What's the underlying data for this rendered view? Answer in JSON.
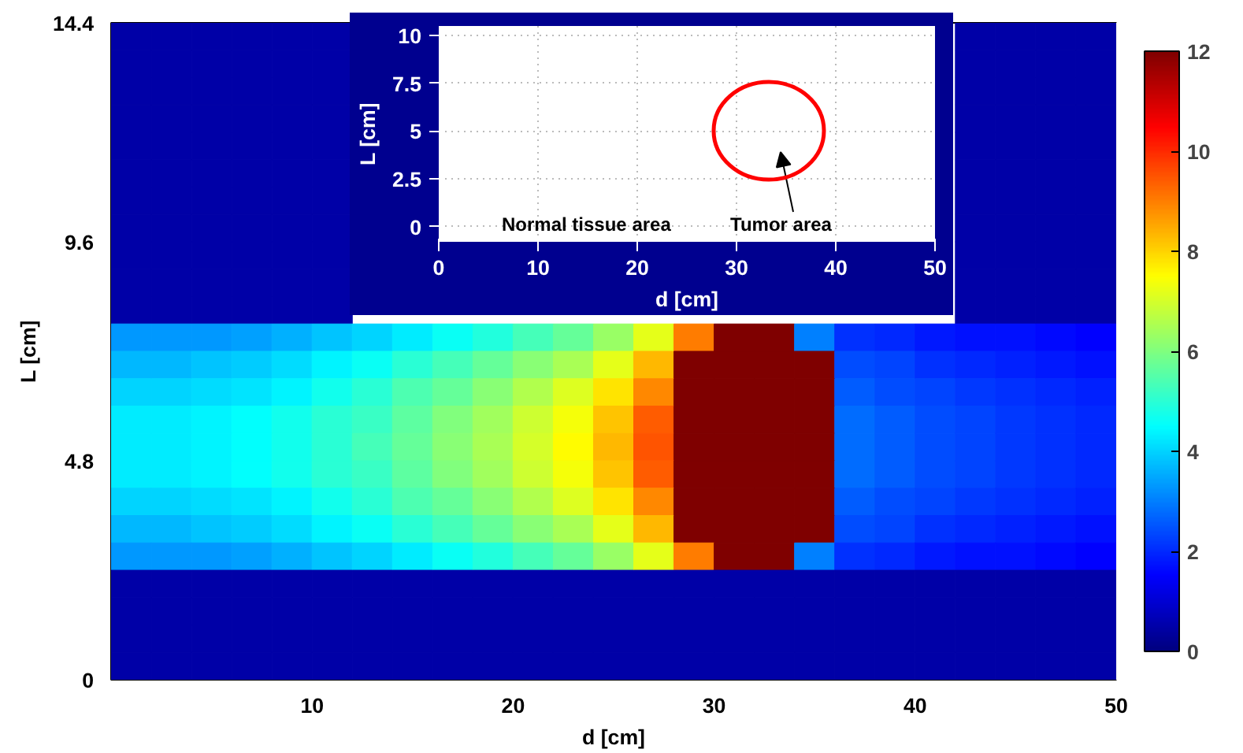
{
  "chart_data": [
    {
      "type": "heatmap",
      "xlabel": "d [cm]",
      "ylabel": "L [cm]",
      "xlim": [
        0,
        50
      ],
      "xticks": [
        10,
        20,
        30,
        40,
        50
      ],
      "ylim": [
        0,
        14.4
      ],
      "yticks": [
        0,
        4.8,
        9.6,
        14.4
      ],
      "clim": [
        0,
        12
      ],
      "cticks": [
        0,
        2,
        4,
        6,
        8,
        10,
        12
      ],
      "x": [
        1,
        3,
        5,
        7,
        9,
        11,
        13,
        15,
        17,
        19,
        21,
        23,
        25,
        27,
        29,
        31,
        33,
        35,
        37,
        39,
        41,
        43,
        45,
        47,
        49
      ],
      "y": [
        14.1,
        13.5,
        12.9,
        12.3,
        11.7,
        11.1,
        10.5,
        9.9,
        9.3,
        8.7,
        8.1,
        7.5,
        6.9,
        6.3,
        5.7,
        5.1,
        4.5,
        3.9,
        3.3,
        2.7,
        2.1,
        1.5,
        0.9,
        0.3
      ],
      "cells": [
        [
          0.5,
          0.5,
          0.5,
          0.5,
          0.5,
          0.5,
          null,
          null,
          null,
          null,
          null,
          null,
          null,
          null,
          null,
          null,
          null,
          null,
          null,
          null,
          null,
          0.5,
          0.5,
          0.5,
          0.5
        ],
        [
          0.5,
          0.5,
          0.5,
          0.5,
          0.5,
          0.5,
          null,
          null,
          null,
          null,
          null,
          null,
          null,
          null,
          null,
          null,
          null,
          null,
          null,
          null,
          null,
          0.5,
          0.5,
          0.5,
          0.5
        ],
        [
          0.5,
          0.5,
          0.5,
          0.5,
          0.5,
          0.5,
          null,
          null,
          null,
          null,
          null,
          null,
          null,
          null,
          null,
          null,
          null,
          null,
          null,
          null,
          null,
          0.5,
          0.5,
          0.5,
          0.5
        ],
        [
          0.5,
          0.5,
          0.5,
          0.5,
          0.5,
          0.5,
          null,
          null,
          null,
          null,
          null,
          null,
          null,
          null,
          null,
          null,
          null,
          null,
          null,
          null,
          null,
          0.5,
          0.5,
          0.5,
          0.5
        ],
        [
          0.5,
          0.5,
          0.5,
          0.5,
          0.5,
          0.5,
          null,
          null,
          null,
          null,
          null,
          null,
          null,
          null,
          null,
          null,
          null,
          null,
          null,
          null,
          null,
          0.5,
          0.5,
          0.5,
          0.5
        ],
        [
          0.5,
          0.5,
          0.5,
          0.5,
          0.5,
          0.5,
          null,
          null,
          null,
          null,
          null,
          null,
          null,
          null,
          null,
          null,
          null,
          null,
          null,
          null,
          null,
          0.5,
          0.5,
          0.5,
          0.5
        ],
        [
          0.5,
          0.5,
          0.5,
          0.5,
          0.5,
          0.5,
          null,
          null,
          null,
          null,
          null,
          null,
          null,
          null,
          null,
          null,
          null,
          null,
          null,
          null,
          null,
          0.5,
          0.5,
          0.5,
          0.5
        ],
        [
          0.5,
          0.5,
          0.5,
          0.5,
          0.5,
          0.5,
          null,
          null,
          null,
          null,
          null,
          null,
          null,
          null,
          null,
          null,
          null,
          null,
          null,
          null,
          null,
          0.5,
          0.5,
          0.5,
          0.5
        ],
        [
          0.5,
          0.5,
          0.5,
          0.5,
          0.5,
          0.5,
          null,
          null,
          null,
          null,
          null,
          null,
          null,
          null,
          null,
          null,
          null,
          null,
          null,
          null,
          null,
          0.5,
          0.5,
          0.5,
          0.5
        ],
        [
          0.5,
          0.5,
          0.5,
          0.5,
          0.5,
          0.5,
          null,
          null,
          null,
          null,
          null,
          null,
          null,
          null,
          null,
          null,
          null,
          null,
          null,
          null,
          null,
          0.5,
          0.5,
          0.5,
          0.5
        ],
        [
          0.5,
          0.5,
          0.5,
          0.5,
          0.5,
          0.5,
          null,
          null,
          null,
          null,
          null,
          null,
          null,
          null,
          null,
          null,
          null,
          null,
          null,
          null,
          null,
          0.5,
          0.5,
          0.5,
          0.5
        ],
        [
          3.3,
          3.3,
          3.3,
          3.4,
          3.6,
          3.8,
          4.0,
          4.3,
          4.6,
          4.9,
          5.3,
          5.7,
          6.3,
          7.2,
          9.0,
          12,
          12,
          3.0,
          2.1,
          2.0,
          1.8,
          1.7,
          1.7,
          1.6,
          1.5
        ],
        [
          3.7,
          3.7,
          3.8,
          3.9,
          4.1,
          4.4,
          4.6,
          5.0,
          5.3,
          5.7,
          6.1,
          6.5,
          7.2,
          8.3,
          12,
          12,
          12,
          12,
          2.4,
          2.3,
          2.1,
          2.0,
          1.9,
          1.8,
          1.7
        ],
        [
          4.0,
          4.0,
          4.1,
          4.2,
          4.4,
          4.7,
          5.0,
          5.4,
          5.7,
          6.1,
          6.6,
          7.1,
          7.8,
          8.9,
          12,
          12,
          12,
          12,
          2.6,
          2.4,
          2.3,
          2.2,
          2.1,
          2.0,
          1.9
        ],
        [
          4.3,
          4.3,
          4.4,
          4.5,
          4.7,
          5.0,
          5.2,
          5.6,
          6.0,
          6.4,
          6.9,
          7.4,
          8.2,
          9.4,
          12,
          12,
          12,
          12,
          2.8,
          2.6,
          2.4,
          2.3,
          2.2,
          2.1,
          2.0
        ],
        [
          4.3,
          4.3,
          4.4,
          4.5,
          4.7,
          5.0,
          5.3,
          5.7,
          6.1,
          6.5,
          7.0,
          7.5,
          8.3,
          9.5,
          12,
          12,
          12,
          12,
          2.8,
          2.6,
          2.4,
          2.3,
          2.2,
          2.1,
          2.0
        ],
        [
          4.3,
          4.3,
          4.4,
          4.5,
          4.7,
          5.0,
          5.2,
          5.6,
          6.0,
          6.4,
          6.9,
          7.4,
          8.2,
          9.4,
          12,
          12,
          12,
          12,
          2.8,
          2.6,
          2.4,
          2.3,
          2.2,
          2.1,
          2.0
        ],
        [
          4.0,
          4.0,
          4.1,
          4.2,
          4.4,
          4.7,
          5.0,
          5.4,
          5.7,
          6.1,
          6.6,
          7.1,
          7.8,
          8.9,
          12,
          12,
          12,
          12,
          2.6,
          2.4,
          2.3,
          2.2,
          2.1,
          2.0,
          1.9
        ],
        [
          3.7,
          3.7,
          3.8,
          3.9,
          4.1,
          4.4,
          4.6,
          5.0,
          5.3,
          5.7,
          6.1,
          6.5,
          7.2,
          8.3,
          12,
          12,
          12,
          12,
          2.4,
          2.3,
          2.1,
          2.0,
          1.9,
          1.8,
          1.7
        ],
        [
          3.3,
          3.3,
          3.3,
          3.4,
          3.6,
          3.8,
          4.0,
          4.3,
          4.6,
          4.9,
          5.3,
          5.7,
          6.3,
          7.2,
          9.0,
          12,
          12,
          3.0,
          2.1,
          2.0,
          1.8,
          1.7,
          1.7,
          1.6,
          1.5
        ],
        [
          0.5,
          0.5,
          0.5,
          0.5,
          0.5,
          0.5,
          0.5,
          0.5,
          0.5,
          0.5,
          0.5,
          0.5,
          0.5,
          0.5,
          0.5,
          0.5,
          0.5,
          0.5,
          0.5,
          0.5,
          0.5,
          0.5,
          0.5,
          0.5,
          0.5
        ],
        [
          0.5,
          0.5,
          0.5,
          0.5,
          0.5,
          0.5,
          0.5,
          0.5,
          0.5,
          0.5,
          0.5,
          0.5,
          0.5,
          0.5,
          0.5,
          0.5,
          0.5,
          0.5,
          0.5,
          0.5,
          0.5,
          0.5,
          0.5,
          0.5,
          0.5
        ],
        [
          0.5,
          0.5,
          0.5,
          0.5,
          0.5,
          0.5,
          0.5,
          0.5,
          0.5,
          0.5,
          0.5,
          0.5,
          0.5,
          0.5,
          0.5,
          0.5,
          0.5,
          0.5,
          0.5,
          0.5,
          0.5,
          0.5,
          0.5,
          0.5,
          0.5
        ],
        [
          0.5,
          0.5,
          0.5,
          0.5,
          0.5,
          0.5,
          0.5,
          0.5,
          0.5,
          0.5,
          0.5,
          0.5,
          0.5,
          0.5,
          0.5,
          0.5,
          0.5,
          0.5,
          0.5,
          0.5,
          0.5,
          0.5,
          0.5,
          0.5,
          0.5
        ]
      ]
    },
    {
      "type": "line",
      "xlabel": "d [cm]",
      "ylabel": "L [cm]",
      "xlim": [
        0,
        50
      ],
      "xticks": [
        0,
        10,
        20,
        30,
        40,
        50
      ],
      "ylim": [
        -0.8,
        10.5
      ],
      "yticks": [
        0,
        2.5,
        5,
        7.5,
        10
      ],
      "grid": true,
      "annotations": [
        "Normal tissue area",
        "Tumor area"
      ]
    }
  ]
}
